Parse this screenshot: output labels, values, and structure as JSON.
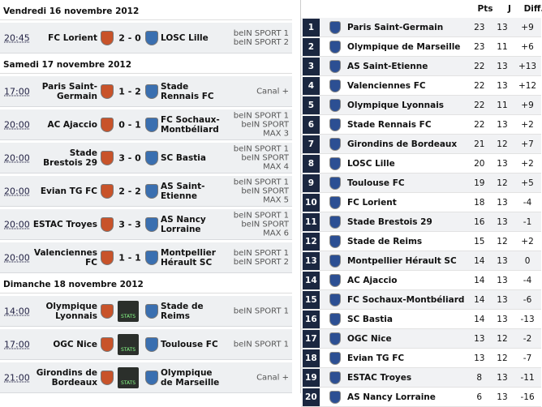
{
  "fixtures": {
    "days": [
      {
        "date": "Vendredi 16 novembre 2012",
        "matches": [
          {
            "time": "20:45",
            "home": "FC Lorient",
            "score": "2 - 0",
            "away": "LOSC Lille",
            "channels": [
              "beIN SPORT 1",
              "beIN SPORT 2"
            ]
          }
        ]
      },
      {
        "date": "Samedi 17 novembre 2012",
        "matches": [
          {
            "time": "17:00",
            "home": "Paris Saint-Germain",
            "score": "1 - 2",
            "away": "Stade Rennais FC",
            "channels": [
              "Canal +"
            ]
          },
          {
            "time": "20:00",
            "home": "AC Ajaccio",
            "score": "0 - 1",
            "away": "FC Sochaux-Montbéliard",
            "channels": [
              "beIN SPORT 1",
              "beIN SPORT",
              "MAX 3"
            ]
          },
          {
            "time": "20:00",
            "home": "Stade Brestois 29",
            "score": "3 - 0",
            "away": "SC Bastia",
            "channels": [
              "beIN SPORT 1",
              "beIN SPORT",
              "MAX 4"
            ]
          },
          {
            "time": "20:00",
            "home": "Evian TG FC",
            "score": "2 - 2",
            "away": "AS Saint-Etienne",
            "channels": [
              "beIN SPORT 1",
              "beIN SPORT",
              "MAX 5"
            ]
          },
          {
            "time": "20:00",
            "home": "ESTAC Troyes",
            "score": "3 - 3",
            "away": "AS Nancy Lorraine",
            "channels": [
              "beIN SPORT 1",
              "beIN SPORT",
              "MAX 6"
            ]
          },
          {
            "time": "20:00",
            "home": "Valenciennes FC",
            "score": "1 - 1",
            "away": "Montpellier Hérault SC",
            "channels": [
              "beIN SPORT 1",
              "beIN SPORT 2"
            ]
          }
        ]
      },
      {
        "date": "Dimanche 18 novembre 2012",
        "matches": [
          {
            "time": "14:00",
            "home": "Olympique Lyonnais",
            "stats": "STATS",
            "away": "Stade de Reims",
            "channels": [
              "beIN SPORT 1"
            ]
          },
          {
            "time": "17:00",
            "home": "OGC Nice",
            "stats": "STATS",
            "away": "Toulouse FC",
            "channels": [
              "beIN SPORT 1"
            ]
          },
          {
            "time": "21:00",
            "home": "Girondins de Bordeaux",
            "stats": "STATS",
            "away": "Olympique de Marseille",
            "channels": [
              "Canal +"
            ]
          }
        ]
      }
    ]
  },
  "standings": {
    "columns": [
      "Pts",
      "J",
      "Diff."
    ],
    "rows": [
      {
        "rank": 1,
        "team": "Paris Saint-Germain",
        "pts": 23,
        "played": 13,
        "diff": "+9"
      },
      {
        "rank": 2,
        "team": "Olympique de Marseille",
        "pts": 23,
        "played": 11,
        "diff": "+6"
      },
      {
        "rank": 3,
        "team": "AS Saint-Etienne",
        "pts": 22,
        "played": 13,
        "diff": "+13"
      },
      {
        "rank": 4,
        "team": "Valenciennes FC",
        "pts": 22,
        "played": 13,
        "diff": "+12"
      },
      {
        "rank": 5,
        "team": "Olympique Lyonnais",
        "pts": 22,
        "played": 11,
        "diff": "+9"
      },
      {
        "rank": 6,
        "team": "Stade Rennais FC",
        "pts": 22,
        "played": 13,
        "diff": "+2"
      },
      {
        "rank": 7,
        "team": "Girondins de Bordeaux",
        "pts": 21,
        "played": 12,
        "diff": "+7"
      },
      {
        "rank": 8,
        "team": "LOSC Lille",
        "pts": 20,
        "played": 13,
        "diff": "+2"
      },
      {
        "rank": 9,
        "team": "Toulouse FC",
        "pts": 19,
        "played": 12,
        "diff": "+5"
      },
      {
        "rank": 10,
        "team": "FC Lorient",
        "pts": 18,
        "played": 13,
        "diff": "-4"
      },
      {
        "rank": 11,
        "team": "Stade Brestois 29",
        "pts": 16,
        "played": 13,
        "diff": "-1"
      },
      {
        "rank": 12,
        "team": "Stade de Reims",
        "pts": 15,
        "played": 12,
        "diff": "+2"
      },
      {
        "rank": 13,
        "team": "Montpellier Hérault SC",
        "pts": 14,
        "played": 13,
        "diff": "0"
      },
      {
        "rank": 14,
        "team": "AC Ajaccio",
        "pts": 14,
        "played": 13,
        "diff": "-4"
      },
      {
        "rank": 15,
        "team": "FC Sochaux-Montbéliard",
        "pts": 14,
        "played": 13,
        "diff": "-6"
      },
      {
        "rank": 16,
        "team": "SC Bastia",
        "pts": 14,
        "played": 13,
        "diff": "-13"
      },
      {
        "rank": 17,
        "team": "OGC Nice",
        "pts": 13,
        "played": 12,
        "diff": "-2"
      },
      {
        "rank": 18,
        "team": "Evian TG FC",
        "pts": 13,
        "played": 12,
        "diff": "-7"
      },
      {
        "rank": 19,
        "team": "ESTAC Troyes",
        "pts": 8,
        "played": 13,
        "diff": "-11"
      },
      {
        "rank": 20,
        "team": "AS Nancy Lorraine",
        "pts": 6,
        "played": 13,
        "diff": "-16"
      }
    ]
  }
}
